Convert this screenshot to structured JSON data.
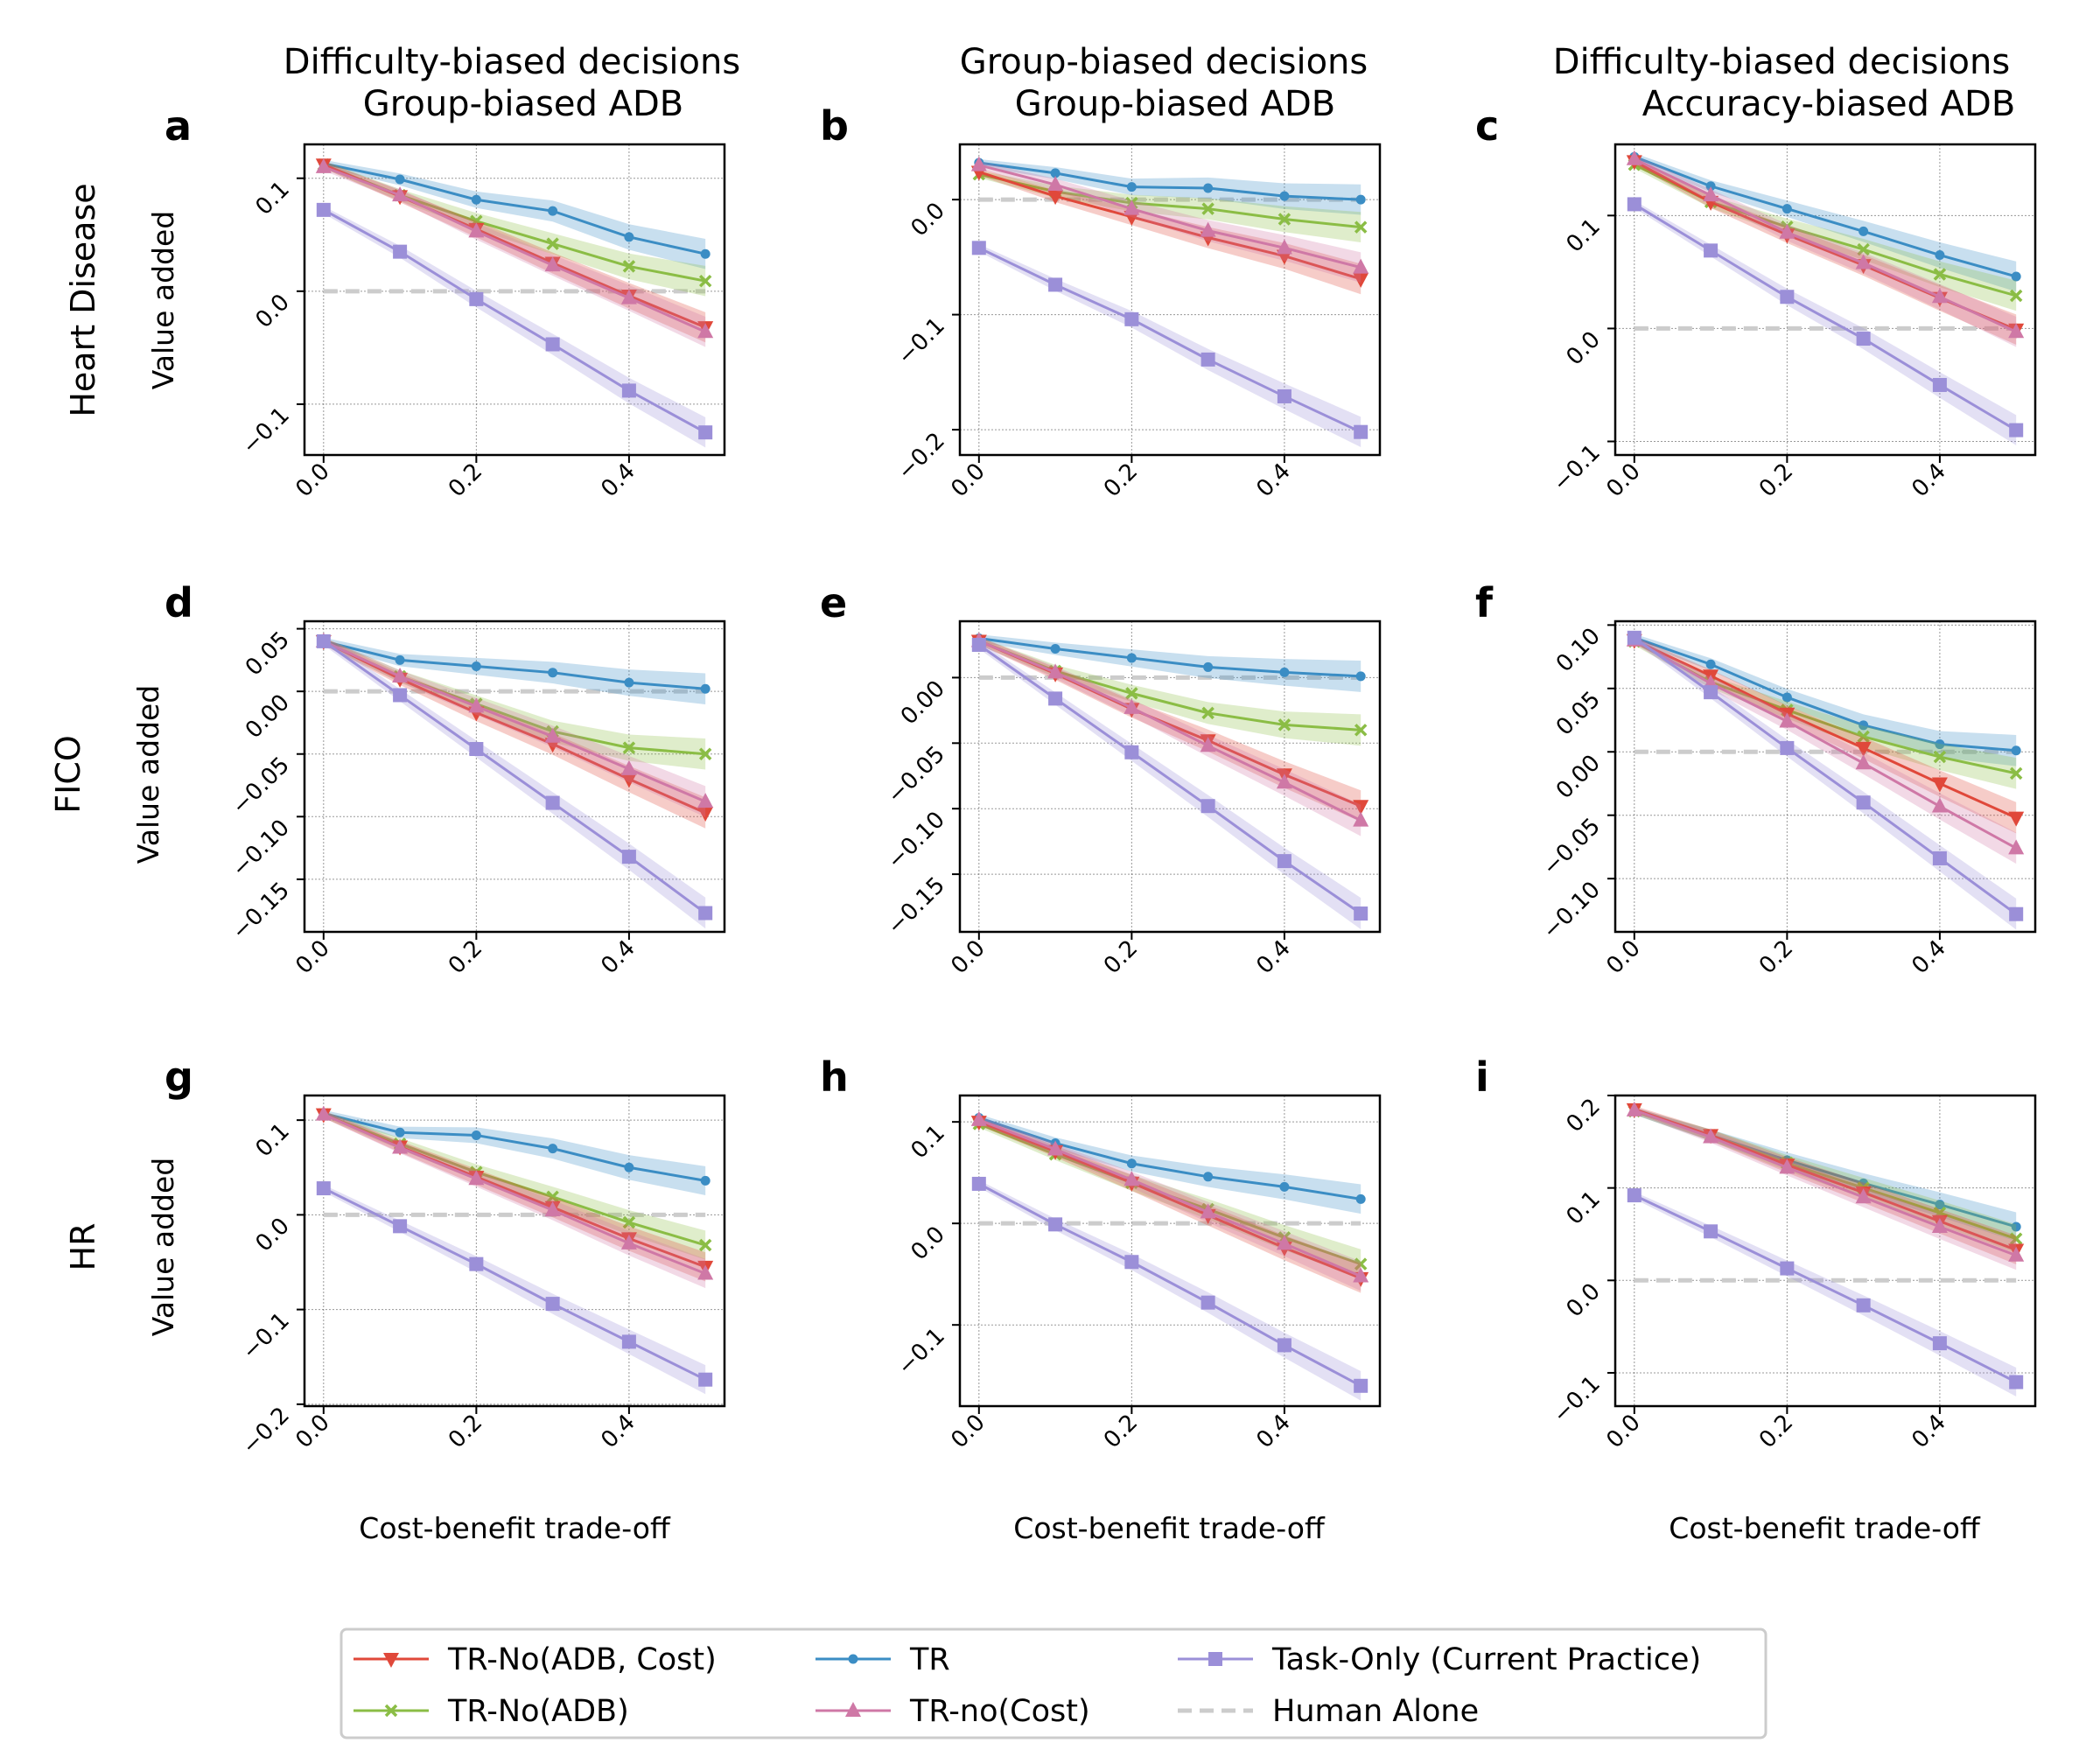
{
  "figure": {
    "column_titles": [
      {
        "line1": "Difficulty-biased decisions",
        "line2": "Group-biased ADB"
      },
      {
        "line1": "Group-biased decisions",
        "line2": "Group-biased ADB"
      },
      {
        "line1": "Difficulty-biased decisions",
        "line2": "Accuracy-biased ADB"
      }
    ],
    "row_labels": [
      "Heart Disease",
      "FICO",
      "HR"
    ],
    "y_axis_label": "Value added",
    "x_axis_label": "Cost-benefit trade-off"
  },
  "legend": {
    "entries": [
      {
        "key": "tr_no_adb_cost",
        "label": "TR-No(ADB, Cost)",
        "color": "#e0483a",
        "marker": "triangle-down"
      },
      {
        "key": "tr_no_adb",
        "label": "TR-No(ADB)",
        "color": "#8bbd45",
        "marker": "x"
      },
      {
        "key": "tr",
        "label": "TR",
        "color": "#3b8dc4",
        "marker": "dot"
      },
      {
        "key": "tr_no_cost",
        "label": "TR-no(Cost)",
        "color": "#cf78a6",
        "marker": "triangle-up"
      },
      {
        "key": "task_only",
        "label": "Task-Only (Current Practice)",
        "color": "#9b8fd8",
        "marker": "square"
      },
      {
        "key": "human_alone",
        "label": "Human Alone",
        "color": "#cccccc",
        "marker": "dash"
      }
    ]
  },
  "chart_data": [
    {
      "panel": "a",
      "type": "line",
      "row": 0,
      "col": 0,
      "x": [
        0,
        0.1,
        0.2,
        0.3,
        0.4,
        0.5
      ],
      "xlim": [
        -0.025,
        0.525
      ],
      "ylim": [
        -0.145,
        0.13
      ],
      "xticks": [
        "0.0",
        "0.2",
        "0.4"
      ],
      "xtick_values": [
        0,
        0.2,
        0.4
      ],
      "yticks": [
        "−0.1",
        "0.0",
        "0.1"
      ],
      "ytick_values": [
        -0.1,
        0,
        0.1
      ],
      "series": [
        {
          "key": "tr",
          "values": [
            0.113,
            0.099,
            0.081,
            0.071,
            0.048,
            0.033
          ]
        },
        {
          "key": "tr_no_adb",
          "values": [
            0.112,
            0.085,
            0.062,
            0.042,
            0.022,
            0.009
          ]
        },
        {
          "key": "tr_no_adb_cost",
          "values": [
            0.112,
            0.084,
            0.055,
            0.025,
            -0.004,
            -0.032
          ]
        },
        {
          "key": "tr_no_cost",
          "values": [
            0.11,
            0.085,
            0.053,
            0.023,
            -0.006,
            -0.036
          ]
        },
        {
          "key": "task_only",
          "values": [
            0.072,
            0.035,
            -0.007,
            -0.047,
            -0.088,
            -0.125
          ]
        },
        {
          "key": "human_alone",
          "values": [
            0,
            0,
            0,
            0,
            0,
            0
          ]
        }
      ]
    },
    {
      "panel": "b",
      "type": "line",
      "row": 0,
      "col": 1,
      "x": [
        0,
        0.1,
        0.2,
        0.3,
        0.4,
        0.5
      ],
      "xlim": [
        -0.025,
        0.525
      ],
      "ylim": [
        -0.222,
        0.048
      ],
      "xticks": [
        "0.0",
        "0.2",
        "0.4"
      ],
      "xtick_values": [
        0,
        0.2,
        0.4
      ],
      "yticks": [
        "−0.2",
        "−0.1",
        "0.0"
      ],
      "ytick_values": [
        -0.2,
        -0.1,
        0
      ],
      "series": [
        {
          "key": "tr",
          "values": [
            0.032,
            0.023,
            0.011,
            0.01,
            0.003,
            0.0
          ]
        },
        {
          "key": "tr_no_adb",
          "values": [
            0.022,
            0.007,
            -0.003,
            -0.008,
            -0.017,
            -0.024
          ]
        },
        {
          "key": "tr_no_adb_cost",
          "values": [
            0.024,
            0.003,
            -0.015,
            -0.033,
            -0.049,
            -0.069
          ]
        },
        {
          "key": "tr_no_cost",
          "values": [
            0.03,
            0.013,
            -0.008,
            -0.027,
            -0.042,
            -0.059
          ]
        },
        {
          "key": "task_only",
          "values": [
            -0.042,
            -0.074,
            -0.104,
            -0.139,
            -0.171,
            -0.202
          ]
        },
        {
          "key": "human_alone",
          "values": [
            0,
            0,
            0,
            0,
            0,
            0
          ]
        }
      ]
    },
    {
      "panel": "c",
      "type": "line",
      "row": 0,
      "col": 2,
      "x": [
        0,
        0.1,
        0.2,
        0.3,
        0.4,
        0.5
      ],
      "xlim": [
        -0.025,
        0.525
      ],
      "ylim": [
        -0.112,
        0.163
      ],
      "xticks": [
        "0.0",
        "0.2",
        "0.4"
      ],
      "xtick_values": [
        0,
        0.2,
        0.4
      ],
      "yticks": [
        "−0.1",
        "0.0",
        "0.1"
      ],
      "ytick_values": [
        -0.1,
        0,
        0.1
      ],
      "series": [
        {
          "key": "tr",
          "values": [
            0.152,
            0.126,
            0.106,
            0.086,
            0.065,
            0.046
          ]
        },
        {
          "key": "tr_no_adb",
          "values": [
            0.145,
            0.112,
            0.09,
            0.07,
            0.048,
            0.029
          ]
        },
        {
          "key": "tr_no_adb_cost",
          "values": [
            0.148,
            0.112,
            0.083,
            0.056,
            0.027,
            -0.001
          ]
        },
        {
          "key": "tr_no_cost",
          "values": [
            0.15,
            0.118,
            0.085,
            0.058,
            0.028,
            -0.003
          ]
        },
        {
          "key": "task_only",
          "values": [
            0.11,
            0.069,
            0.028,
            -0.009,
            -0.05,
            -0.09
          ]
        },
        {
          "key": "human_alone",
          "values": [
            0,
            0,
            0,
            0,
            0,
            0
          ]
        }
      ]
    },
    {
      "panel": "d",
      "type": "line",
      "row": 1,
      "col": 0,
      "x": [
        0,
        0.1,
        0.2,
        0.3,
        0.4,
        0.5
      ],
      "xlim": [
        -0.025,
        0.525
      ],
      "ylim": [
        -0.192,
        0.056
      ],
      "xticks": [
        "0.0",
        "0.2",
        "0.4"
      ],
      "xtick_values": [
        0,
        0.2,
        0.4
      ],
      "yticks": [
        "−0.15",
        "−0.10",
        "−0.05",
        "0.00",
        "0.05"
      ],
      "ytick_values": [
        -0.15,
        -0.1,
        -0.05,
        0,
        0.05
      ],
      "series": [
        {
          "key": "tr",
          "values": [
            0.04,
            0.025,
            0.02,
            0.015,
            0.007,
            0.002
          ]
        },
        {
          "key": "tr_no_adb",
          "values": [
            0.04,
            0.012,
            -0.01,
            -0.032,
            -0.045,
            -0.05
          ]
        },
        {
          "key": "tr_no_adb_cost",
          "values": [
            0.04,
            0.01,
            -0.017,
            -0.042,
            -0.07,
            -0.097
          ]
        },
        {
          "key": "tr_no_cost",
          "values": [
            0.04,
            0.012,
            -0.012,
            -0.036,
            -0.062,
            -0.088
          ]
        },
        {
          "key": "task_only",
          "values": [
            0.04,
            -0.003,
            -0.046,
            -0.089,
            -0.132,
            -0.177
          ]
        },
        {
          "key": "human_alone",
          "values": [
            0,
            0,
            0,
            0,
            0,
            0
          ]
        }
      ]
    },
    {
      "panel": "e",
      "type": "line",
      "row": 1,
      "col": 1,
      "x": [
        0,
        0.1,
        0.2,
        0.3,
        0.4,
        0.5
      ],
      "xlim": [
        -0.025,
        0.525
      ],
      "ylim": [
        -0.194,
        0.043
      ],
      "xticks": [
        "0.0",
        "0.2",
        "0.4"
      ],
      "xtick_values": [
        0,
        0.2,
        0.4
      ],
      "yticks": [
        "−0.15",
        "−0.10",
        "−0.05",
        "0.00"
      ],
      "ytick_values": [
        -0.15,
        -0.1,
        -0.05,
        0
      ],
      "series": [
        {
          "key": "tr",
          "values": [
            0.03,
            0.022,
            0.015,
            0.008,
            0.004,
            0.001
          ]
        },
        {
          "key": "tr_no_adb",
          "values": [
            0.028,
            0.005,
            -0.012,
            -0.027,
            -0.036,
            -0.04
          ]
        },
        {
          "key": "tr_no_adb_cost",
          "values": [
            0.028,
            0.003,
            -0.024,
            -0.048,
            -0.074,
            -0.098
          ]
        },
        {
          "key": "tr_no_cost",
          "values": [
            0.028,
            0.004,
            -0.023,
            -0.052,
            -0.08,
            -0.109
          ]
        },
        {
          "key": "task_only",
          "values": [
            0.025,
            -0.016,
            -0.057,
            -0.098,
            -0.14,
            -0.18
          ]
        },
        {
          "key": "human_alone",
          "values": [
            0,
            0,
            0,
            0,
            0,
            0
          ]
        }
      ]
    },
    {
      "panel": "f",
      "type": "line",
      "row": 1,
      "col": 2,
      "x": [
        0,
        0.1,
        0.2,
        0.3,
        0.4,
        0.5
      ],
      "xlim": [
        -0.025,
        0.525
      ],
      "ylim": [
        -0.142,
        0.103
      ],
      "xticks": [
        "0.0",
        "0.2",
        "0.4"
      ],
      "xtick_values": [
        0,
        0.2,
        0.4
      ],
      "yticks": [
        "−0.10",
        "−0.05",
        "0.00",
        "0.05",
        "0.10"
      ],
      "ytick_values": [
        -0.1,
        -0.05,
        0,
        0.05,
        0.1
      ],
      "series": [
        {
          "key": "tr",
          "values": [
            0.09,
            0.069,
            0.043,
            0.021,
            0.006,
            0.001
          ]
        },
        {
          "key": "tr_no_adb",
          "values": [
            0.087,
            0.055,
            0.033,
            0.012,
            -0.004,
            -0.017
          ]
        },
        {
          "key": "tr_no_adb_cost",
          "values": [
            0.088,
            0.06,
            0.03,
            0.003,
            -0.025,
            -0.052
          ]
        },
        {
          "key": "tr_no_cost",
          "values": [
            0.088,
            0.054,
            0.024,
            -0.009,
            -0.043,
            -0.076
          ]
        },
        {
          "key": "task_only",
          "values": [
            0.09,
            0.047,
            0.003,
            -0.04,
            -0.084,
            -0.128
          ]
        },
        {
          "key": "human_alone",
          "values": [
            0,
            0,
            0,
            0,
            0,
            0
          ]
        }
      ]
    },
    {
      "panel": "g",
      "type": "line",
      "row": 2,
      "col": 0,
      "x": [
        0,
        0.1,
        0.2,
        0.3,
        0.4,
        0.5
      ],
      "xlim": [
        -0.025,
        0.525
      ],
      "ylim": [
        -0.202,
        0.126
      ],
      "xticks": [
        "0.0",
        "0.2",
        "0.4"
      ],
      "xtick_values": [
        0,
        0.2,
        0.4
      ],
      "yticks": [
        "−0.2",
        "−0.1",
        "0.0",
        "0.1"
      ],
      "ytick_values": [
        -0.2,
        -0.1,
        0,
        0.1
      ],
      "series": [
        {
          "key": "tr",
          "values": [
            0.107,
            0.087,
            0.084,
            0.07,
            0.05,
            0.036
          ]
        },
        {
          "key": "tr_no_adb",
          "values": [
            0.106,
            0.075,
            0.045,
            0.019,
            -0.008,
            -0.032
          ]
        },
        {
          "key": "tr_no_adb_cost",
          "values": [
            0.106,
            0.072,
            0.04,
            0.008,
            -0.025,
            -0.055
          ]
        },
        {
          "key": "tr_no_cost",
          "values": [
            0.106,
            0.071,
            0.038,
            0.005,
            -0.03,
            -0.062
          ]
        },
        {
          "key": "task_only",
          "values": [
            0.028,
            -0.012,
            -0.052,
            -0.094,
            -0.134,
            -0.174
          ]
        },
        {
          "key": "human_alone",
          "values": [
            0,
            0,
            0,
            0,
            0,
            0
          ]
        }
      ]
    },
    {
      "panel": "h",
      "type": "line",
      "row": 2,
      "col": 1,
      "x": [
        0,
        0.1,
        0.2,
        0.3,
        0.4,
        0.5
      ],
      "xlim": [
        -0.025,
        0.525
      ],
      "ylim": [
        -0.18,
        0.126
      ],
      "xticks": [
        "0.0",
        "0.2",
        "0.4"
      ],
      "xtick_values": [
        0,
        0.2,
        0.4
      ],
      "yticks": [
        "−0.1",
        "0.0",
        "0.1"
      ],
      "ytick_values": [
        -0.1,
        0,
        0.1
      ],
      "series": [
        {
          "key": "tr",
          "values": [
            0.104,
            0.079,
            0.059,
            0.046,
            0.036,
            0.024
          ]
        },
        {
          "key": "tr_no_adb",
          "values": [
            0.098,
            0.068,
            0.04,
            0.014,
            -0.014,
            -0.04
          ]
        },
        {
          "key": "tr_no_adb_cost",
          "values": [
            0.1,
            0.071,
            0.04,
            0.008,
            -0.024,
            -0.054
          ]
        },
        {
          "key": "tr_no_cost",
          "values": [
            0.102,
            0.073,
            0.043,
            0.011,
            -0.02,
            -0.052
          ]
        },
        {
          "key": "task_only",
          "values": [
            0.039,
            -0.001,
            -0.038,
            -0.078,
            -0.12,
            -0.16
          ]
        },
        {
          "key": "human_alone",
          "values": [
            0,
            0,
            0,
            0,
            0,
            0
          ]
        }
      ]
    },
    {
      "panel": "i",
      "type": "line",
      "row": 2,
      "col": 2,
      "x": [
        0,
        0.1,
        0.2,
        0.3,
        0.4,
        0.5
      ],
      "xlim": [
        -0.025,
        0.525
      ],
      "ylim": [
        -0.136,
        0.2
      ],
      "xticks": [
        "0.0",
        "0.2",
        "0.4"
      ],
      "xtick_values": [
        0,
        0.2,
        0.4
      ],
      "yticks": [
        "−0.1",
        "0.0",
        "0.1",
        "0.2"
      ],
      "ytick_values": [
        -0.1,
        0,
        0.1,
        0.2
      ],
      "series": [
        {
          "key": "tr",
          "values": [
            0.183,
            0.157,
            0.13,
            0.105,
            0.082,
            0.058
          ]
        },
        {
          "key": "tr_no_adb",
          "values": [
            0.183,
            0.157,
            0.127,
            0.1,
            0.073,
            0.045
          ]
        },
        {
          "key": "tr_no_adb_cost",
          "values": [
            0.185,
            0.157,
            0.125,
            0.095,
            0.064,
            0.033
          ]
        },
        {
          "key": "tr_no_cost",
          "values": [
            0.184,
            0.155,
            0.122,
            0.09,
            0.058,
            0.027
          ]
        },
        {
          "key": "task_only",
          "values": [
            0.092,
            0.053,
            0.013,
            -0.027,
            -0.068,
            -0.11
          ]
        },
        {
          "key": "human_alone",
          "values": [
            0,
            0,
            0,
            0,
            0,
            0
          ]
        }
      ]
    }
  ]
}
